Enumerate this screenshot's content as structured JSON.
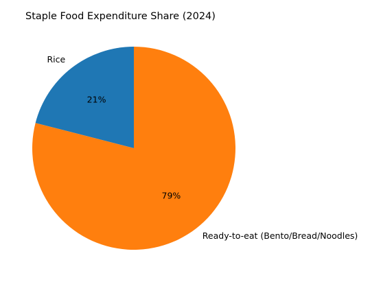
{
  "chart_data": {
    "type": "pie",
    "title": "Staple Food Expenditure Share (2024)",
    "categories": [
      "Rice",
      "Ready-to-eat (Bento/Bread/Noodles)"
    ],
    "values": [
      21,
      79
    ],
    "value_labels": [
      "21%",
      "79%"
    ],
    "colors": [
      "#1f77b4",
      "#ff7f0e"
    ],
    "start_angle_deg": 90,
    "direction": "counterclockwise"
  }
}
